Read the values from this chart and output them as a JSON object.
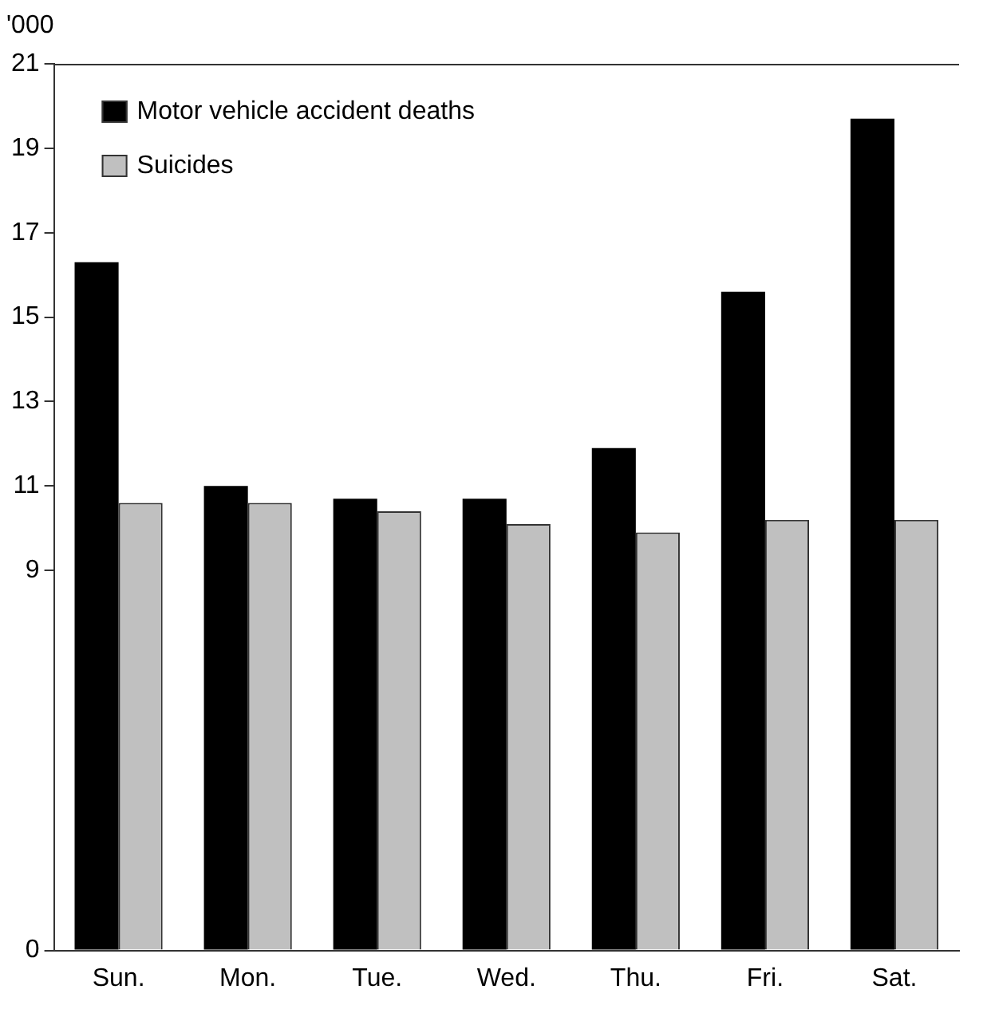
{
  "chart_data": {
    "type": "bar",
    "ylabel": "'000",
    "categories": [
      "Sun.",
      "Mon.",
      "Tue.",
      "Wed.",
      "Thu.",
      "Fri.",
      "Sat."
    ],
    "series": [
      {
        "name": "Motor vehicle accident deaths",
        "color": "#000000",
        "values": [
          16.3,
          11.0,
          10.7,
          10.7,
          11.9,
          15.6,
          19.7
        ]
      },
      {
        "name": "Suicides",
        "color": "#c0c0c0",
        "values": [
          10.6,
          10.6,
          10.4,
          10.1,
          9.9,
          10.2,
          10.2
        ]
      }
    ],
    "ylim": [
      0,
      21
    ],
    "yticks": [
      0,
      9,
      11,
      13,
      15,
      17,
      19,
      21
    ],
    "grid": false,
    "legend": "top left"
  }
}
